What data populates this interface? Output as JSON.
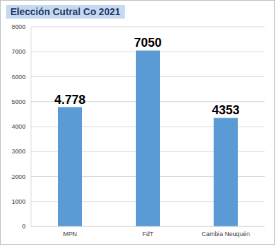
{
  "chart_data": {
    "type": "bar",
    "title": "Elección Cutral Co 2021",
    "categories": [
      "MPN",
      "FdT",
      "Cambia Neuquén"
    ],
    "values": [
      4778,
      7050,
      4353
    ],
    "value_labels": [
      "4.778",
      "7050",
      "4353"
    ],
    "data_labels": true,
    "color": "#5b9bd5",
    "ylim": [
      0,
      8000
    ],
    "yticks": [
      0,
      1000,
      2000,
      3000,
      4000,
      5000,
      6000,
      7000,
      8000
    ],
    "grid": true
  }
}
